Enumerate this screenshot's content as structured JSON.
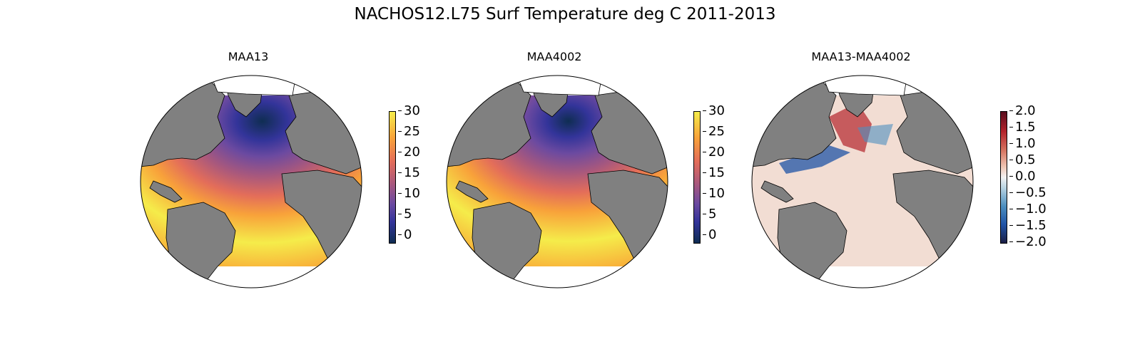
{
  "title": "NACHOS12.L75 Surf Temperature deg C 2011-2013",
  "panels": [
    {
      "title": "MAA13",
      "field": "temperature",
      "colorbar": {
        "ticks": [
          "30",
          "25",
          "20",
          "15",
          "10",
          "5",
          "0"
        ],
        "range": [
          -2,
          30
        ],
        "colormap": [
          "#f5ec4a",
          "#f8a23a",
          "#e36d5a",
          "#a8587d",
          "#6c4aa0",
          "#33349a",
          "#0f2d52"
        ]
      }
    },
    {
      "title": "MAA4002",
      "field": "temperature",
      "colorbar": {
        "ticks": [
          "30",
          "25",
          "20",
          "15",
          "10",
          "5",
          "0"
        ],
        "range": [
          -2,
          30
        ],
        "colormap": [
          "#f5ec4a",
          "#f8a23a",
          "#e36d5a",
          "#a8587d",
          "#6c4aa0",
          "#33349a",
          "#0f2d52"
        ]
      }
    },
    {
      "title": "MAA13-MAA4002",
      "field": "difference",
      "colorbar": {
        "ticks": [
          "2.0",
          "1.5",
          "1.0",
          "0.5",
          "0.0",
          "−0.5",
          "−1.0",
          "−1.5",
          "−2.0"
        ],
        "range": [
          -2,
          2
        ],
        "colormap": [
          "#5a0d1e",
          "#b3232b",
          "#d77864",
          "#efc6b4",
          "#f2f2f2",
          "#b8d3e2",
          "#4d8fbf",
          "#1f53a6",
          "#1b1e45"
        ]
      }
    }
  ],
  "colors": {
    "land": "#808080",
    "ice_cap": "#ffffff",
    "outline": "#000000"
  }
}
